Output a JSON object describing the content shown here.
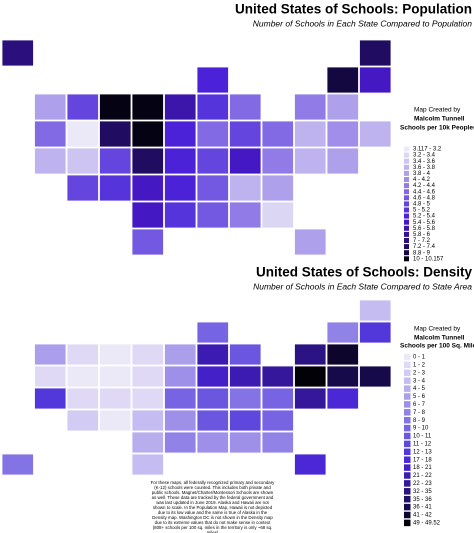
{
  "maps": [
    {
      "title": "United States of Schools: Population",
      "subtitle": "Number of Schools in Each State Compared to Population",
      "credit_label": "Map Created by",
      "credit_name": "Malcolm Tunnell",
      "legend_title": "Schools per 10k Peoples",
      "legend": [
        {
          "label": "3.117 - 3.2",
          "color": "#ebe8f8"
        },
        {
          "label": "3.2 - 3.4",
          "color": "#dcd6f5"
        },
        {
          "label": "3.4 - 3.6",
          "color": "#cdc4f2"
        },
        {
          "label": "3.6 - 3.8",
          "color": "#beb2ef"
        },
        {
          "label": "3.8 - 4",
          "color": "#afa0ec"
        },
        {
          "label": "4 - 4.2",
          "color": "#a08eea"
        },
        {
          "label": "4.2 - 4.4",
          "color": "#917ce7"
        },
        {
          "label": "4.4 - 4.6",
          "color": "#826ae4"
        },
        {
          "label": "4.6 - 4.8",
          "color": "#7358e1"
        },
        {
          "label": "4.8 - 5",
          "color": "#6446de"
        },
        {
          "label": "5 - 5.2",
          "color": "#5634db"
        },
        {
          "label": "5.2 - 5.4",
          "color": "#4b22d8"
        },
        {
          "label": "5.4 - 5.6",
          "color": "#4418c2"
        },
        {
          "label": "5.6 - 5.8",
          "color": "#3c15ab"
        },
        {
          "label": "5.8 - 6",
          "color": "#331294"
        },
        {
          "label": "7 - 7.2",
          "color": "#2a0f7d"
        },
        {
          "label": "7.2 - 7.4",
          "color": "#200c60"
        },
        {
          "label": "8.8 - 9",
          "color": "#140840"
        },
        {
          "label": "10 - 10.157",
          "color": "#050214"
        }
      ],
      "regions": [
        15,
        16,
        11,
        17,
        12,
        4,
        9,
        18,
        18,
        13,
        10,
        7,
        6,
        4,
        7,
        0,
        16,
        18,
        11,
        7,
        9,
        7,
        3,
        5,
        3,
        3,
        2,
        9,
        16,
        11,
        9,
        12,
        6,
        3,
        4,
        9,
        10,
        12,
        11,
        8,
        3,
        4,
        null,
        12,
        10,
        8,
        6,
        1,
        null,
        8,
        4
      ]
    },
    {
      "title": "United States of Schools: Density",
      "subtitle": "Number of Schools in Each State Compared to State Area",
      "credit_label": "Map Created by",
      "credit_name": "Malcolm Tunnell",
      "legend_title": "Schools per 100 Sq. Miles",
      "legend": [
        {
          "label": "0 - 1",
          "color": "#ebe8f8"
        },
        {
          "label": "1 - 2",
          "color": "#dfd9f6"
        },
        {
          "label": "2 - 3",
          "color": "#d2cbf3"
        },
        {
          "label": "3 - 4",
          "color": "#c5bcf1"
        },
        {
          "label": "4 - 5",
          "color": "#b8aeee"
        },
        {
          "label": "5 - 6",
          "color": "#ab9fec"
        },
        {
          "label": "6 - 7",
          "color": "#9e90e9"
        },
        {
          "label": "7 - 8",
          "color": "#9182e7"
        },
        {
          "label": "8 - 9",
          "color": "#8473e4"
        },
        {
          "label": "9 - 10",
          "color": "#7764e2"
        },
        {
          "label": "10 - 11",
          "color": "#6a56df"
        },
        {
          "label": "11 - 12",
          "color": "#5e47dd"
        },
        {
          "label": "12 - 13",
          "color": "#5238da"
        },
        {
          "label": "17 - 18",
          "color": "#4a28d6"
        },
        {
          "label": "18 - 21",
          "color": "#4320c8"
        },
        {
          "label": "21 - 22",
          "color": "#3c1bb2"
        },
        {
          "label": "22 - 23",
          "color": "#34179b"
        },
        {
          "label": "32 - 35",
          "color": "#2b1383"
        },
        {
          "label": "35 - 36",
          "color": "#210f68"
        },
        {
          "label": "36 - 41",
          "color": "#170a4a"
        },
        {
          "label": "41 - 42",
          "color": "#0d052c"
        },
        {
          "label": "49 - 49.52",
          "color": "#030108"
        }
      ],
      "regions": [
        null,
        3,
        9,
        7,
        12,
        5,
        1,
        0,
        1,
        5,
        15,
        10,
        17,
        20,
        1,
        0,
        0,
        1,
        6,
        14,
        15,
        16,
        21,
        19,
        19,
        12,
        1,
        1,
        1,
        9,
        10,
        8,
        9,
        16,
        13,
        2,
        0,
        3,
        6,
        10,
        11,
        9,
        null,
        4,
        7,
        6,
        6,
        7,
        8,
        3,
        13
      ]
    }
  ],
  "footnote": "For these maps, all federally recognized primary and secondary (K-12) schools were counted. This includes both private and public schools. Magnet/Charter/Montessori Schools are shown as well. These data are tracked by the federal government and was last updated in June 2019. Alaska and Hawaii are not shown to scale. In the Population Map, Hawaii is not depicted due to its low value and the same is true of Alaska in the Density map. Washington DC is not shown in the Density map due to its extreme values that do not make sense in context (808+ schools per 100 sq. miles in the territory is only ~68 sq. miles)"
}
